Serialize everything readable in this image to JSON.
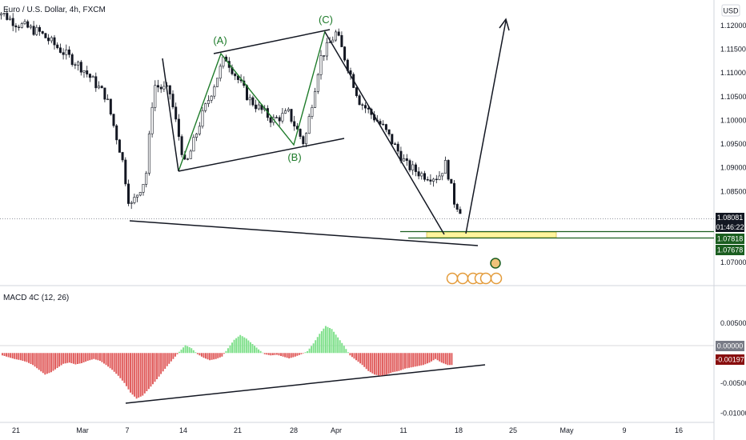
{
  "price_pane": {
    "title": "Euro / U.S. Dollar, 4h, FXCM",
    "currency": "USD",
    "y_ticks": [
      "1.12000",
      "1.11500",
      "1.11000",
      "1.10500",
      "1.10000",
      "1.09500",
      "1.09000",
      "1.08500",
      "1.08000",
      "1.07500",
      "1.07000"
    ],
    "last_price": "1.08081",
    "countdown": "01:46:22",
    "target_high": "1.07818",
    "target_low": "1.07678",
    "wave_labels": {
      "a": "(A)",
      "b": "(B)",
      "c": "(C)"
    }
  },
  "macd_pane": {
    "title": "MACD 4C (12, 26)",
    "y_ticks": [
      "0.00500",
      "0.00000",
      "-0.00500",
      "-0.01000"
    ],
    "zero_tag": "0.00000",
    "value_tag": "-0.00197"
  },
  "x_ticks": [
    "21",
    "Mar",
    "7",
    "14",
    "21",
    "28",
    "Apr",
    "11",
    "18",
    "25",
    "May",
    "9",
    "16"
  ],
  "colors": {
    "up_bar": "#7ee08a",
    "down_bar": "#e05a5a",
    "wave_line": "#1e7b2a",
    "zone_fill": "#fff59d",
    "value_tag": "#880e0e",
    "target_tag": "#1b5e20",
    "last_tag": "#131722",
    "zero_tag": "#787b86"
  },
  "chart_data": [
    {
      "type": "candlestick",
      "title": "Euro / U.S. Dollar, 4h, FXCM",
      "ylabel": "USD",
      "ylim": [
        1.0675,
        1.1215
      ],
      "x": [
        "21",
        "Mar",
        "7",
        "14",
        "21",
        "28",
        "Apr",
        "11",
        "18",
        "25",
        "May",
        "9",
        "16"
      ],
      "close_path": [
        {
          "x": "Feb 18",
          "y": 1.124
        },
        {
          "x": "Feb 21",
          "y": 1.1205
        },
        {
          "x": "Feb 24",
          "y": 1.1185
        },
        {
          "x": "Mar 1",
          "y": 1.111
        },
        {
          "x": "Mar 4",
          "y": 1.105
        },
        {
          "x": "Mar 6",
          "y": 1.092
        },
        {
          "x": "Mar 7",
          "y": 1.0815
        },
        {
          "x": "Mar 9",
          "y": 1.088
        },
        {
          "x": "Mar 10",
          "y": 1.1075
        },
        {
          "x": "Mar 12",
          "y": 1.106
        },
        {
          "x": "Mar 14",
          "y": 1.09
        },
        {
          "x": "Mar 16",
          "y": 1.1005
        },
        {
          "x": "Mar 19",
          "y": 1.1135
        },
        {
          "x": "Mar 22",
          "y": 1.1045
        },
        {
          "x": "Mar 25",
          "y": 1.1
        },
        {
          "x": "Mar 27",
          "y": 1.1015
        },
        {
          "x": "Mar 29",
          "y": 1.095
        },
        {
          "x": "Mar 31",
          "y": 1.113
        },
        {
          "x": "Apr 1",
          "y": 1.1185
        },
        {
          "x": "Apr 4",
          "y": 1.104
        },
        {
          "x": "Apr 7",
          "y": 1.0985
        },
        {
          "x": "Apr 10",
          "y": 1.0905
        },
        {
          "x": "Apr 12",
          "y": 1.0885
        },
        {
          "x": "Apr 14",
          "y": 1.088
        },
        {
          "x": "Apr 15",
          "y": 1.091
        },
        {
          "x": "Apr 16",
          "y": 1.083
        },
        {
          "x": "Apr 17",
          "y": 1.0808
        }
      ],
      "annotations": [
        {
          "label": "(A)",
          "x": "Mar 19",
          "y": 1.114
        },
        {
          "label": "(B)",
          "x": "Mar 29",
          "y": 1.095
        },
        {
          "label": "(C)",
          "x": "Apr 1",
          "y": 1.1185
        }
      ],
      "target_zone": [
        1.07678,
        1.07818
      ],
      "last_price": 1.08081
    },
    {
      "type": "bar",
      "title": "MACD 4C (12, 26)",
      "ylim": [
        -0.0105,
        0.0075
      ],
      "series": [
        {
          "values": [
            -0.0004,
            -0.0007,
            -0.001,
            -0.0012,
            -0.0015,
            -0.002,
            -0.0028,
            -0.0036,
            -0.0032,
            -0.0025,
            -0.0018,
            -0.0016,
            -0.0019,
            -0.0017,
            -0.0013,
            -0.001,
            -0.0013,
            -0.002,
            -0.0028,
            -0.0038,
            -0.005,
            -0.0066,
            -0.0076,
            -0.0071,
            -0.006,
            -0.0048,
            -0.0035,
            -0.0022,
            -0.001,
            0.0002,
            0.0013,
            0.0008,
            -0.0002,
            -0.0008,
            -0.0012,
            -0.001,
            -0.0006,
            0.0008,
            0.0022,
            0.003,
            0.0024,
            0.0015,
            0.0006,
            -0.0002,
            -0.0004,
            -0.0003,
            -0.0006,
            -0.0009,
            -0.0006,
            -0.0002,
            0.0003,
            0.0016,
            0.0032,
            0.0045,
            0.004,
            0.0026,
            0.0012,
            -0.0004,
            -0.0012,
            -0.002,
            -0.003,
            -0.0036,
            -0.0038,
            -0.0036,
            -0.0032,
            -0.003,
            -0.0026,
            -0.0024,
            -0.0022,
            -0.002,
            -0.0016,
            -0.001,
            -0.0016,
            -0.002
          ]
        }
      ]
    }
  ]
}
